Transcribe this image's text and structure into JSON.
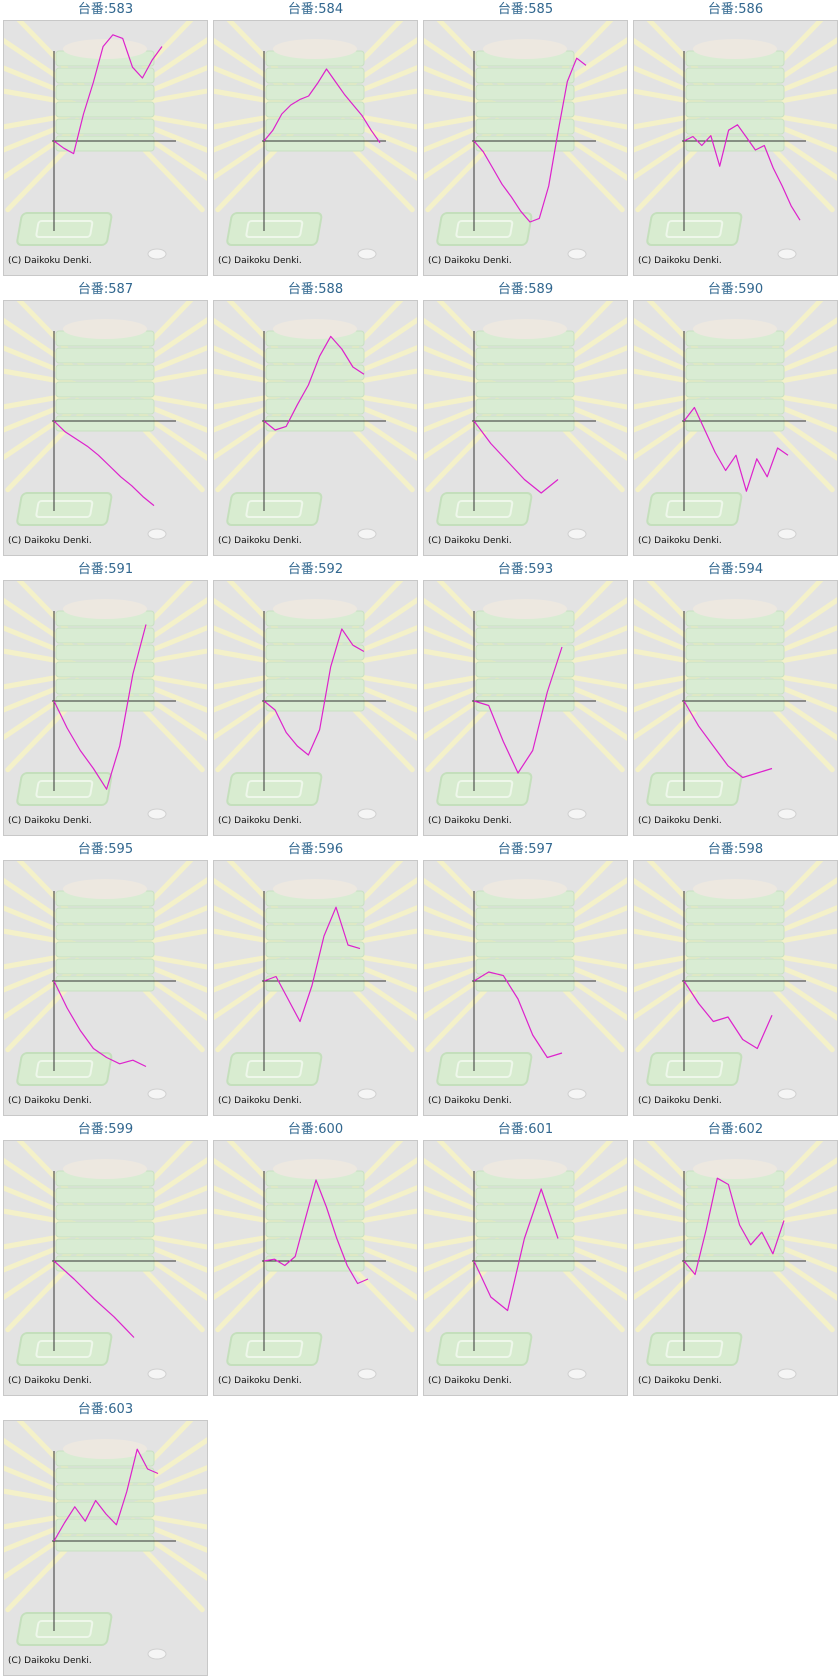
{
  "machine_label": "台番:",
  "credit": "(C) Daikoku Denki.",
  "colors": {
    "line": "#dd22cc",
    "axis": "#333333",
    "title": "#31678f",
    "panel": "#e3e3e3"
  },
  "chart_data": [
    {
      "type": "line",
      "machine": "583",
      "y": [
        0,
        -0.08,
        -0.14,
        0.3,
        0.65,
        1.05,
        1.18,
        1.14,
        0.82,
        0.7,
        0.9,
        1.05
      ]
    },
    {
      "type": "line",
      "machine": "584",
      "y": [
        0,
        0.12,
        0.3,
        0.4,
        0.46,
        0.5,
        0.64,
        0.8,
        0.66,
        0.52,
        0.4,
        0.28,
        0.12,
        -0.02
      ]
    },
    {
      "type": "line",
      "machine": "585",
      "y": [
        0,
        -0.12,
        -0.3,
        -0.48,
        -0.62,
        -0.78,
        -0.9,
        -0.86,
        -0.5,
        0.1,
        0.66,
        0.92,
        0.84
      ]
    },
    {
      "type": "line",
      "machine": "586",
      "y": [
        0,
        0.05,
        -0.05,
        0.06,
        -0.28,
        0.12,
        0.18,
        0.04,
        -0.1,
        -0.05,
        -0.3,
        -0.5,
        -0.72,
        -0.88
      ]
    },
    {
      "type": "line",
      "machine": "587",
      "y": [
        0,
        -0.12,
        -0.2,
        -0.28,
        -0.38,
        -0.5,
        -0.62,
        -0.72,
        -0.84,
        -0.94
      ]
    },
    {
      "type": "line",
      "machine": "588",
      "y": [
        0,
        -0.1,
        -0.06,
        0.18,
        0.4,
        0.72,
        0.94,
        0.8,
        0.6,
        0.52
      ]
    },
    {
      "type": "line",
      "machine": "589",
      "y": [
        0,
        -0.25,
        -0.45,
        -0.65,
        -0.8,
        -0.65
      ]
    },
    {
      "type": "line",
      "machine": "590",
      "y": [
        0,
        0.15,
        -0.1,
        -0.35,
        -0.55,
        -0.38,
        -0.78,
        -0.42,
        -0.62,
        -0.3,
        -0.38
      ]
    },
    {
      "type": "line",
      "machine": "591",
      "y": [
        0,
        -0.3,
        -0.55,
        -0.75,
        -0.98,
        -0.5,
        0.3,
        0.85
      ]
    },
    {
      "type": "line",
      "machine": "592",
      "y": [
        0,
        -0.1,
        -0.35,
        -0.5,
        -0.6,
        -0.32,
        0.38,
        0.8,
        0.62,
        0.55
      ]
    },
    {
      "type": "line",
      "machine": "593",
      "y": [
        0,
        -0.05,
        -0.45,
        -0.8,
        -0.55,
        0.1,
        0.6
      ]
    },
    {
      "type": "line",
      "machine": "594",
      "y": [
        0,
        -0.28,
        -0.5,
        -0.72,
        -0.85,
        -0.8,
        -0.75
      ]
    },
    {
      "type": "line",
      "machine": "595",
      "y": [
        0,
        -0.3,
        -0.55,
        -0.75,
        -0.85,
        -0.92,
        -0.88,
        -0.95
      ]
    },
    {
      "type": "line",
      "machine": "596",
      "y": [
        0,
        0.05,
        -0.2,
        -0.45,
        -0.05,
        0.5,
        0.82,
        0.4,
        0.36
      ]
    },
    {
      "type": "line",
      "machine": "597",
      "y": [
        0,
        0.1,
        0.06,
        -0.2,
        -0.6,
        -0.85,
        -0.8
      ]
    },
    {
      "type": "line",
      "machine": "598",
      "y": [
        0,
        -0.25,
        -0.45,
        -0.4,
        -0.65,
        -0.75,
        -0.38
      ]
    },
    {
      "type": "line",
      "machine": "599",
      "y": [
        0,
        -0.2,
        -0.42,
        -0.62,
        -0.85
      ]
    },
    {
      "type": "line",
      "machine": "600",
      "y": [
        0,
        0.02,
        -0.05,
        0.05,
        0.48,
        0.9,
        0.6,
        0.25,
        -0.05,
        -0.25,
        -0.2
      ]
    },
    {
      "type": "line",
      "machine": "601",
      "y": [
        0,
        -0.4,
        -0.55,
        0.25,
        0.8,
        0.25
      ]
    },
    {
      "type": "line",
      "machine": "602",
      "y": [
        0,
        -0.15,
        0.35,
        0.92,
        0.85,
        0.4,
        0.18,
        0.32,
        0.08,
        0.45
      ]
    },
    {
      "type": "line",
      "machine": "603",
      "y": [
        0,
        0.2,
        0.38,
        0.22,
        0.45,
        0.3,
        0.18,
        0.55,
        1.02,
        0.8,
        0.75
      ]
    }
  ]
}
